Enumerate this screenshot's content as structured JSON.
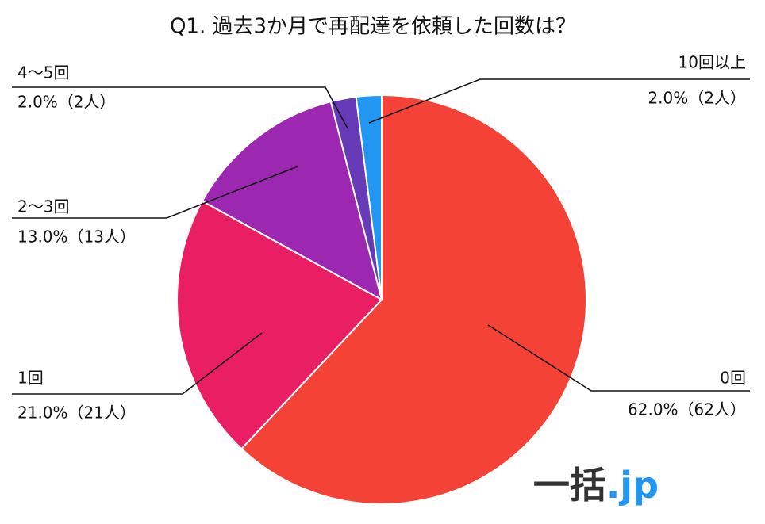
{
  "chart_data": {
    "type": "pie",
    "title": "Q1. 過去3か月で再配達を依頼した回数は？",
    "categories": [
      "0回",
      "1回",
      "2～3回",
      "4～5回",
      "10回以上"
    ],
    "values": [
      62,
      21,
      13,
      2,
      2
    ],
    "value_labels": [
      "62.0%（62人）",
      "21.0%（21人）",
      "13.0%（13人）",
      "2.0%（2人）",
      "2.0%（2人）"
    ],
    "colors": [
      "#f44336",
      "#e91e63",
      "#9c27b0",
      "#673ab7",
      "#2196f3"
    ],
    "logo": {
      "main": "一括",
      "suffix": ".jp"
    }
  }
}
